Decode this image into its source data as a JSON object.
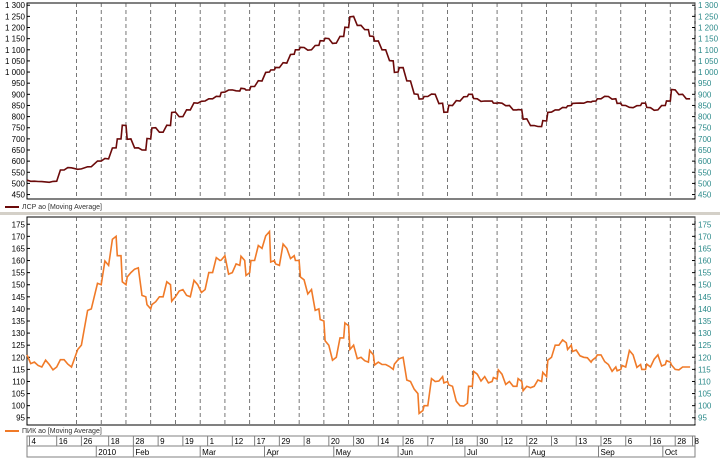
{
  "chart_data": [
    {
      "type": "line",
      "legend": "ЛСР ао [Moving Average]",
      "color": "#6b0a0a",
      "ylim": [
        430,
        1310
      ],
      "y_ticks": [
        450,
        500,
        550,
        600,
        650,
        700,
        750,
        800,
        850,
        900,
        950,
        1000,
        1050,
        1100,
        1150,
        1200,
        1250,
        1300
      ],
      "y_tick_labels": [
        "450",
        "500",
        "550",
        "600",
        "650",
        "700",
        "750",
        "800",
        "850",
        "900",
        "950",
        "1 000",
        "1 050",
        "1 100",
        "1 150",
        "1 200",
        "1 250",
        "1 300"
      ],
      "series": [
        {
          "x": [
            0,
            3,
            6,
            9,
            12,
            15,
            18,
            22,
            26,
            30,
            33,
            36,
            38,
            40,
            42,
            45,
            48,
            50,
            52,
            55,
            58,
            60,
            63,
            66,
            69,
            72,
            75,
            78,
            80,
            83,
            86,
            88,
            90,
            92,
            95,
            98,
            100,
            102,
            105,
            108,
            110,
            112,
            115,
            118,
            120,
            122,
            125,
            128,
            130,
            132,
            135,
            138,
            140,
            142,
            145,
            148,
            150,
            152,
            155,
            158,
            160,
            162,
            165,
            168,
            170,
            172,
            175,
            178,
            180,
            182,
            185,
            188,
            190,
            192,
            195,
            198,
            200,
            202,
            205,
            208,
            210,
            212,
            215,
            218,
            220,
            222,
            225,
            228,
            230,
            232,
            235,
            238,
            240,
            242,
            245,
            248,
            250,
            252,
            255,
            258,
            260,
            262,
            265,
            268
          ],
          "values": [
            515,
            510,
            508,
            505,
            510,
            560,
            570,
            565,
            575,
            600,
            610,
            660,
            700,
            760,
            700,
            660,
            650,
            700,
            750,
            730,
            760,
            820,
            800,
            830,
            860,
            870,
            880,
            890,
            910,
            920,
            915,
            925,
            920,
            935,
            960,
            1000,
            1010,
            1020,
            1040,
            1080,
            1100,
            1110,
            1100,
            1120,
            1140,
            1150,
            1130,
            1160,
            1200,
            1250,
            1210,
            1190,
            1160,
            1140,
            1100,
            1050,
            1000,
            1020,
            960,
            900,
            880,
            890,
            900,
            860,
            820,
            850,
            870,
            890,
            900,
            880,
            870,
            870,
            860,
            860,
            850,
            830,
            830,
            790,
            760,
            755,
            780,
            820,
            830,
            840,
            850,
            860,
            860,
            865,
            870,
            880,
            890,
            880,
            860,
            850,
            840,
            850,
            860,
            840,
            830,
            850,
            870,
            920,
            900,
            880
          ]
        }
      ]
    },
    {
      "type": "line",
      "legend": "ПИК ао [Moving Average]",
      "color": "#f07a28",
      "ylim": [
        92,
        178
      ],
      "y_ticks": [
        95,
        100,
        105,
        110,
        115,
        120,
        125,
        130,
        135,
        140,
        145,
        150,
        155,
        160,
        165,
        170,
        175
      ],
      "y_tick_labels": [
        "95",
        "100",
        "105",
        "110",
        "115",
        "120",
        "125",
        "130",
        "135",
        "140",
        "145",
        "150",
        "155",
        "160",
        "165",
        "170",
        "175"
      ],
      "series": [
        {
          "x": [
            0,
            3,
            6,
            9,
            12,
            15,
            18,
            22,
            26,
            30,
            33,
            36,
            38,
            40,
            42,
            45,
            48,
            50,
            52,
            55,
            58,
            60,
            63,
            66,
            69,
            72,
            75,
            78,
            80,
            83,
            86,
            88,
            90,
            92,
            95,
            98,
            100,
            102,
            105,
            108,
            110,
            112,
            115,
            118,
            120,
            122,
            125,
            128,
            130,
            132,
            135,
            138,
            140,
            142,
            145,
            148,
            150,
            152,
            155,
            158,
            160,
            162,
            165,
            168,
            170,
            172,
            175,
            178,
            180,
            182,
            185,
            188,
            190,
            192,
            195,
            198,
            200,
            202,
            205,
            208,
            210,
            212,
            215,
            218,
            220,
            222,
            225,
            228,
            230,
            232,
            235,
            238,
            240,
            242,
            245,
            248,
            250,
            252,
            255,
            258,
            260,
            262,
            265,
            268
          ],
          "values": [
            121,
            118,
            116,
            117,
            116,
            119,
            116,
            125,
            140,
            150,
            158,
            170,
            162,
            150,
            155,
            157,
            145,
            140,
            143,
            145,
            150,
            145,
            148,
            145,
            150,
            148,
            155,
            160,
            162,
            155,
            158,
            160,
            155,
            160,
            165,
            172,
            160,
            158,
            165,
            162,
            160,
            152,
            148,
            140,
            135,
            125,
            120,
            128,
            133,
            125,
            120,
            118,
            121,
            118,
            117,
            115,
            119,
            120,
            110,
            105,
            98,
            100,
            110,
            112,
            110,
            108,
            100,
            101,
            108,
            113,
            112,
            110,
            111,
            113,
            110,
            108,
            110,
            108,
            108,
            110,
            112,
            120,
            125,
            126,
            125,
            123,
            120,
            118,
            120,
            121,
            117,
            116,
            115,
            116,
            121,
            117,
            115,
            116,
            121,
            117,
            118,
            115,
            116,
            116
          ]
        }
      ]
    },
    {
      "type": "date_axis",
      "day_ticks": [
        {
          "x": 1,
          "label": "4"
        },
        {
          "x": 12,
          "label": "16"
        },
        {
          "x": 22,
          "label": "26"
        },
        {
          "x": 33,
          "label": "18"
        },
        {
          "x": 43,
          "label": "28"
        },
        {
          "x": 53,
          "label": "9"
        },
        {
          "x": 63,
          "label": "19"
        },
        {
          "x": 73,
          "label": "1"
        },
        {
          "x": 83,
          "label": "12"
        },
        {
          "x": 92,
          "label": "17"
        },
        {
          "x": 102,
          "label": "29"
        },
        {
          "x": 112,
          "label": "8"
        },
        {
          "x": 122,
          "label": "20"
        },
        {
          "x": 132,
          "label": "30"
        },
        {
          "x": 142,
          "label": "14"
        },
        {
          "x": 152,
          "label": "26"
        },
        {
          "x": 162,
          "label": "7"
        },
        {
          "x": 172,
          "label": "18"
        },
        {
          "x": 182,
          "label": "30"
        },
        {
          "x": 192,
          "label": "12"
        },
        {
          "x": 202,
          "label": "22"
        },
        {
          "x": 212,
          "label": "3"
        },
        {
          "x": 222,
          "label": "13"
        },
        {
          "x": 232,
          "label": "25"
        },
        {
          "x": 242,
          "label": "6"
        },
        {
          "x": 252,
          "label": "16"
        },
        {
          "x": 262,
          "label": "28"
        },
        {
          "x": 269,
          "label": "8"
        }
      ],
      "month_ticks": [
        {
          "x": 28,
          "label": "2010"
        },
        {
          "x": 43,
          "label": "Feb"
        },
        {
          "x": 70,
          "label": "Mar"
        },
        {
          "x": 96,
          "label": "Apr"
        },
        {
          "x": 124,
          "label": "May"
        },
        {
          "x": 150,
          "label": "Jun"
        },
        {
          "x": 177,
          "label": "Jul"
        },
        {
          "x": 203,
          "label": "Aug"
        },
        {
          "x": 231,
          "label": "Sep"
        },
        {
          "x": 257,
          "label": "Oct"
        }
      ],
      "vgrid": [
        20,
        30,
        40,
        50,
        60,
        70,
        80,
        90,
        100,
        110,
        120,
        130,
        140,
        150,
        160,
        170,
        180,
        190,
        200,
        210,
        220,
        230,
        240,
        250,
        260,
        270
      ]
    }
  ]
}
